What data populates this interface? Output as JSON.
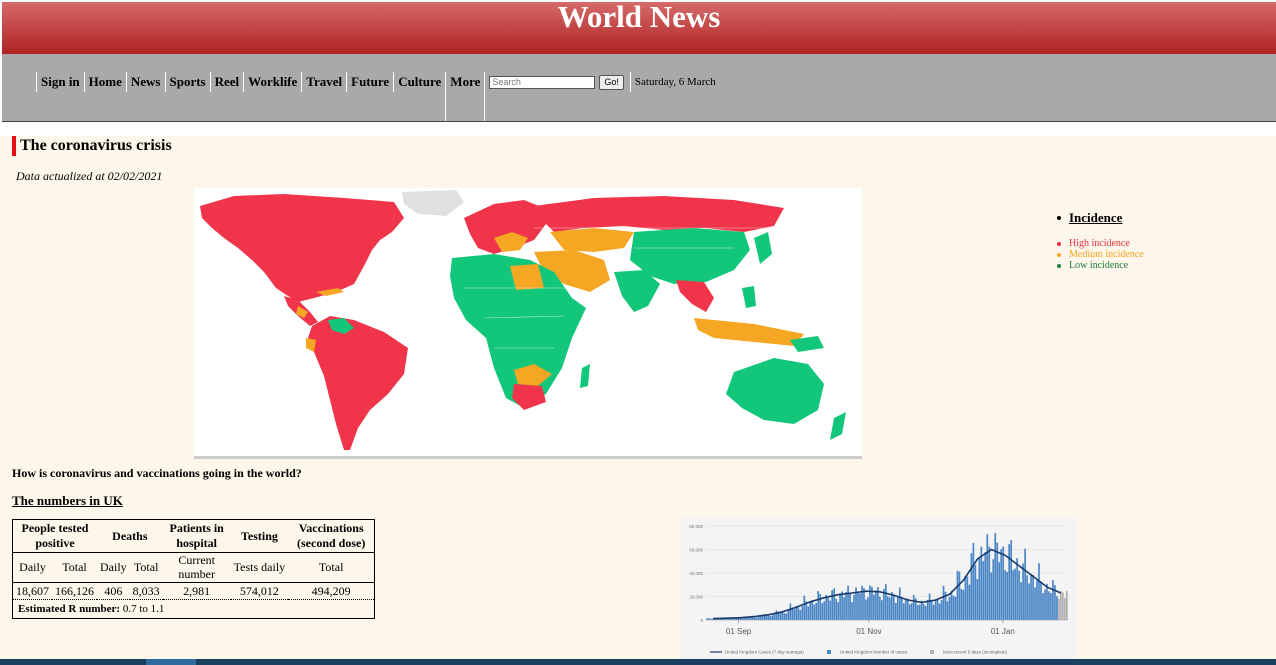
{
  "header": {
    "title": "World News"
  },
  "nav": {
    "items": [
      "Sign in",
      "Home",
      "News",
      "Sports",
      "Reel",
      "Worklife",
      "Travel",
      "Future",
      "Culture",
      "More"
    ],
    "search_placeholder": "Search",
    "go_label": "Go!",
    "date": "Saturday, 6 March"
  },
  "section": {
    "title": "The coronavirus crisis",
    "data_date": "Data actualized at 02/02/2021",
    "question": "How is coronavirus and vaccinations going in the world?",
    "uk_title": "The numbers in UK"
  },
  "legend": {
    "title": "Incidence",
    "items": [
      {
        "label": "High incidence",
        "color": "#e8303f"
      },
      {
        "label": "Medium incidence",
        "color": "#f5a623"
      },
      {
        "label": "Low incidence",
        "color": "#1e7b3c"
      }
    ]
  },
  "map_colors": {
    "high": "#f0354a",
    "medium": "#f5a623",
    "low": "#12c77a",
    "unknown": "#e0e0e0"
  },
  "uk_table": {
    "headers": [
      "People tested positive",
      "Deaths",
      "Patients in hospital",
      "Testing",
      "Vaccinations (second dose)"
    ],
    "subheaders": [
      "Daily",
      "Total",
      "Daily",
      "Total",
      "Current number",
      "Tests daily",
      "Total"
    ],
    "values": [
      "18,607",
      "166,126",
      "406",
      "8,033",
      "2,981",
      "574,012",
      "494,209"
    ],
    "r_label": "Estimated R number:",
    "r_value": "0.7 to 1.1"
  },
  "chart_data": {
    "type": "bar",
    "title": "",
    "x_ticks": [
      "01 Sep",
      "01 Nov",
      "01 Jan"
    ],
    "y_ticks": [
      "80,000",
      "60,000",
      "40,000",
      "20,000",
      "0"
    ],
    "ylim": [
      0,
      80000
    ],
    "legend": [
      "United Kingdom Cases (7 day average)",
      "United Kingdom Number of cases",
      "Most recent 5 days (incomplete)"
    ],
    "series_colors": {
      "average": "#1a3a6b",
      "cases": "#4a86c5",
      "incomplete": "#b0b0b0"
    },
    "weekly_average": [
      1200,
      1500,
      2000,
      3000,
      4500,
      7000,
      11000,
      15500,
      19000,
      21500,
      23000,
      24500,
      24000,
      21000,
      17000,
      15000,
      17000,
      22000,
      34000,
      52000,
      60000,
      55000,
      46000,
      37000,
      28000,
      23000
    ],
    "incomplete_days": 5
  }
}
